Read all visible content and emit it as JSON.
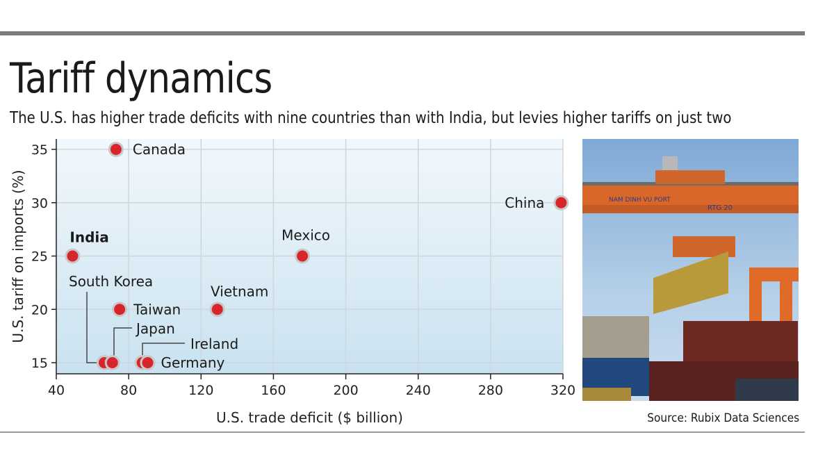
{
  "title": "Tariff dynamics",
  "subtitle": "The U.S. has higher trade deficits with nine countries than with India, but levies higher tariffs on just two",
  "source": "Source: Rubix Data Sciences",
  "colors": {
    "point": "#d7262b",
    "point_halo": "#c8c8c8",
    "plot_bg_top": "#f2f8fc",
    "plot_bg_bottom": "#c9e2f0",
    "rule": "#7a7a7a"
  },
  "photo_icon": "port-crane-container-photo",
  "chart_data": {
    "type": "scatter",
    "xlabel": "U.S. trade deficit ($ billion)",
    "ylabel": "U.S. tariff on imports (%)",
    "xlim": [
      40,
      320
    ],
    "ylim": [
      15,
      35
    ],
    "xticks": [
      40,
      80,
      120,
      160,
      200,
      240,
      280,
      320
    ],
    "yticks": [
      15,
      20,
      25,
      30,
      35
    ],
    "grid": true,
    "points": [
      {
        "label": "Canada",
        "x": 73,
        "y": 35
      },
      {
        "label": "China",
        "x": 319,
        "y": 30
      },
      {
        "label": "India",
        "x": 49,
        "y": 25,
        "highlight": true
      },
      {
        "label": "Mexico",
        "x": 176,
        "y": 25
      },
      {
        "label": "Vietnam",
        "x": 129,
        "y": 20
      },
      {
        "label": "Taiwan",
        "x": 75,
        "y": 20
      },
      {
        "label": "South Korea",
        "x": 66.5,
        "y": 15
      },
      {
        "label": "Japan",
        "x": 71,
        "y": 15
      },
      {
        "label": "Ireland",
        "x": 87.5,
        "y": 15
      },
      {
        "label": "Germany",
        "x": 90.5,
        "y": 15
      }
    ]
  }
}
